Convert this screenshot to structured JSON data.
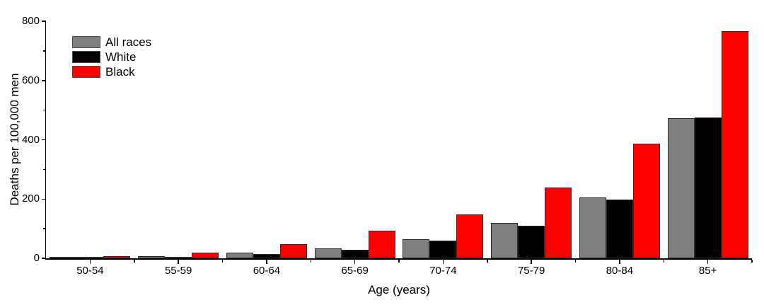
{
  "page": {
    "background": "#ffffff"
  },
  "chart_data": {
    "type": "bar",
    "title": "",
    "xlabel": "Age (years)",
    "ylabel": "Deaths per 100,000 men",
    "categories": [
      "50-54",
      "55-59",
      "60-64",
      "65-69",
      "70-74",
      "75-79",
      "80-84",
      "85+"
    ],
    "series": [
      {
        "name": "All races",
        "color": "#7f7f7f",
        "values": [
          3,
          7,
          19,
          34,
          65,
          120,
          206,
          473
        ]
      },
      {
        "name": "White",
        "color": "#000000",
        "values": [
          2,
          5,
          14,
          29,
          60,
          110,
          199,
          476
        ]
      },
      {
        "name": "Black",
        "color": "#fe0000",
        "values": [
          8,
          19,
          48,
          93,
          149,
          238,
          388,
          766
        ]
      }
    ],
    "ylim": [
      0,
      800
    ],
    "y_major_ticks": [
      0,
      200,
      400,
      600,
      800
    ],
    "y_minor_ticks": [
      100,
      300,
      500,
      700
    ],
    "x_minor_ticks_at_group_boundaries": true,
    "legend_position": "top-left-inside",
    "grid": false,
    "bar_outline_color": "#2b2b2b",
    "axis_color": "#000000",
    "background_color": "#ffffff"
  }
}
